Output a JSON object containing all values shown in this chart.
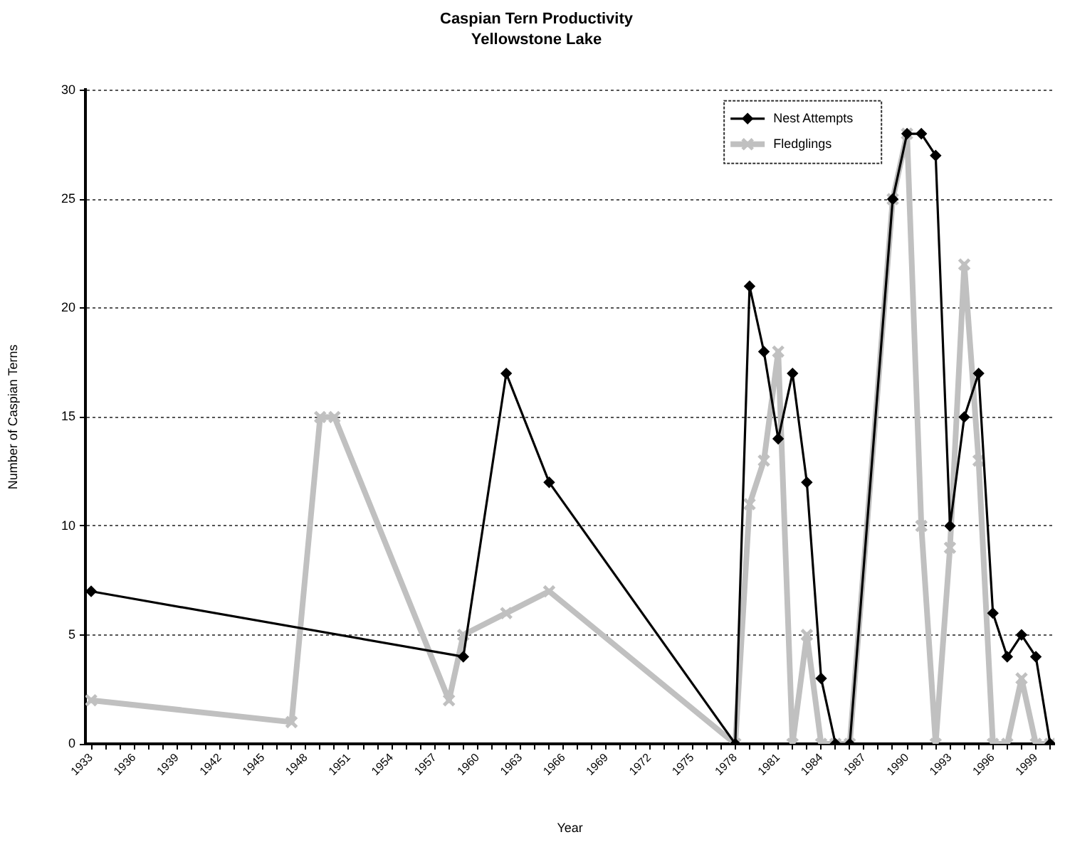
{
  "chart_data": {
    "type": "line",
    "title": "Caspian Tern Productivity",
    "subtitle": "Yellowstone Lake",
    "xlabel": "Year",
    "ylabel": "Number of Caspian Terns",
    "series": [
      {
        "name": "Nest Attempts",
        "color": "#000000",
        "marker": "diamond",
        "x": [
          1933,
          1959,
          1962,
          1965,
          1978,
          1979,
          1980,
          1981,
          1982,
          1983,
          1984,
          1985,
          1986,
          1989,
          1990,
          1991,
          1992,
          1993,
          1994,
          1995,
          1996,
          1997,
          1998,
          1999,
          2000
        ],
        "values": [
          7,
          4,
          17,
          12,
          0,
          21,
          18,
          14,
          17,
          12,
          3,
          0,
          0,
          25,
          28,
          28,
          27,
          10,
          15,
          17,
          6,
          4,
          5,
          4,
          0
        ]
      },
      {
        "name": "Fledglings",
        "color": "#c0c0c0",
        "marker": "cross",
        "x": [
          1933,
          1947,
          1949,
          1950,
          1958,
          1959,
          1962,
          1965,
          1978,
          1979,
          1980,
          1981,
          1982,
          1983,
          1984,
          1985,
          1986,
          1989,
          1990,
          1991,
          1992,
          1993,
          1994,
          1995,
          1996,
          1997,
          1998,
          1999,
          2000
        ],
        "values": [
          2,
          1,
          15,
          15,
          2,
          5,
          6,
          7,
          0,
          11,
          13,
          18,
          0,
          5,
          0,
          0,
          0,
          25,
          28,
          10,
          0,
          9,
          22,
          13,
          0,
          0,
          3,
          0,
          0
        ]
      }
    ],
    "xlim": [
      1932.6,
      2000.3
    ],
    "xticks": [
      1933,
      {
        "value": 1934,
        "label": null
      },
      {
        "value": 1935,
        "label": null
      },
      1936,
      {
        "value": 1937,
        "label": null
      },
      {
        "value": 1938,
        "label": null
      },
      1939,
      {
        "value": 1940,
        "label": null
      },
      {
        "value": 1941,
        "label": null
      },
      1942,
      {
        "value": 1943,
        "label": null
      },
      {
        "value": 1944,
        "label": null
      },
      1945,
      {
        "value": 1946,
        "label": null
      },
      {
        "value": 1947,
        "label": null
      },
      1948,
      {
        "value": 1949,
        "label": null
      },
      {
        "value": 1950,
        "label": null
      },
      1951,
      {
        "value": 1952,
        "label": null
      },
      {
        "value": 1953,
        "label": null
      },
      1954,
      {
        "value": 1955,
        "label": null
      },
      {
        "value": 1956,
        "label": null
      },
      1957,
      {
        "value": 1958,
        "label": null
      },
      {
        "value": 1959,
        "label": null
      },
      1960,
      {
        "value": 1961,
        "label": null
      },
      {
        "value": 1962,
        "label": null
      },
      1963,
      {
        "value": 1964,
        "label": null
      },
      {
        "value": 1965,
        "label": null
      },
      1966,
      {
        "value": 1967,
        "label": null
      },
      {
        "value": 1968,
        "label": null
      },
      1969,
      {
        "value": 1970,
        "label": null
      },
      {
        "value": 1971,
        "label": null
      },
      1972,
      {
        "value": 1973,
        "label": null
      },
      {
        "value": 1974,
        "label": null
      },
      1975,
      {
        "value": 1976,
        "label": null
      },
      {
        "value": 1977,
        "label": null
      },
      1978,
      {
        "value": 1979,
        "label": null
      },
      {
        "value": 1980,
        "label": null
      },
      1981,
      {
        "value": 1982,
        "label": null
      },
      {
        "value": 1983,
        "label": null
      },
      1984,
      {
        "value": 1985,
        "label": null
      },
      {
        "value": 1986,
        "label": null
      },
      1987,
      {
        "value": 1988,
        "label": null
      },
      {
        "value": 1989,
        "label": null
      },
      1990,
      {
        "value": 1991,
        "label": null
      },
      {
        "value": 1992,
        "label": null
      },
      1993,
      {
        "value": 1994,
        "label": null
      },
      {
        "value": 1995,
        "label": null
      },
      1996,
      {
        "value": 1997,
        "label": null
      },
      {
        "value": 1998,
        "label": null
      },
      1999,
      {
        "value": 2000,
        "label": null
      }
    ],
    "ylim": [
      0,
      30
    ],
    "yticks": [
      0,
      5,
      10,
      15,
      20,
      25,
      30
    ],
    "grid": "y",
    "legend": "top right"
  }
}
